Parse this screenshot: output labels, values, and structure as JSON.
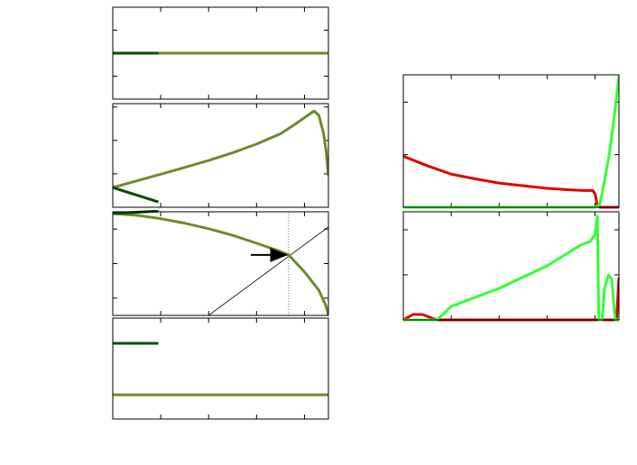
{
  "chart_data": [
    {
      "type": "line",
      "xlim": [
        0,
        4.5
      ],
      "ylim": [
        -2,
        2
      ],
      "xticks": [
        1,
        2,
        3,
        4
      ],
      "yticks": [
        -1,
        0,
        1
      ],
      "series": [
        {
          "color": "#6e8b2a",
          "x": [
            0,
            4.5
          ],
          "values": [
            0,
            0
          ]
        },
        {
          "color": "#004d00",
          "x": [
            0,
            0.95
          ],
          "values": [
            0,
            0
          ]
        }
      ]
    },
    {
      "type": "line",
      "xlim": [
        0,
        4.5
      ],
      "ylim": [
        0,
        3.1
      ],
      "xticks": [
        1,
        2,
        3,
        4
      ],
      "yticks": [
        1,
        2,
        3
      ],
      "series": [
        {
          "color": "#6e8b2a",
          "x": [
            0,
            0.5,
            1,
            1.5,
            2,
            2.5,
            3,
            3.5,
            3.8,
            4.0,
            4.2,
            4.3,
            4.4,
            4.45,
            4.5
          ],
          "values": [
            0.59,
            0.79,
            0.99,
            1.19,
            1.4,
            1.63,
            1.89,
            2.2,
            2.48,
            2.68,
            2.88,
            2.75,
            2.2,
            1.7,
            0.94
          ]
        },
        {
          "color": "#004d00",
          "x": [
            0,
            0.95
          ],
          "values": [
            0.59,
            0.16
          ]
        }
      ]
    },
    {
      "type": "line",
      "xlim": [
        0,
        4.5
      ],
      "ylim": [
        -0.5,
        2.5
      ],
      "xticks": [
        1,
        2,
        3,
        4
      ],
      "yticks": [
        0,
        1,
        2
      ],
      "vlines": [
        3.67
      ],
      "arrow": {
        "x": [
          2.88,
          3.62
        ],
        "y": [
          1.25,
          1.25
        ]
      },
      "series": [
        {
          "color": "#000000",
          "linewidth": 0.8,
          "x": [
            2.0,
            4.5
          ],
          "values": [
            -0.5,
            2.06
          ]
        },
        {
          "color": "#6e8b2a",
          "x": [
            0,
            0.5,
            1,
            1.5,
            2,
            2.5,
            3,
            3.5,
            3.67,
            4,
            4.3,
            4.45,
            4.5
          ],
          "values": [
            2.45,
            2.4,
            2.3,
            2.17,
            2.01,
            1.82,
            1.59,
            1.35,
            1.25,
            0.76,
            0.23,
            -0.23,
            -0.5
          ]
        },
        {
          "color": "#004d00",
          "x": [
            0,
            0.95
          ],
          "values": [
            2.45,
            2.52
          ]
        }
      ]
    },
    {
      "type": "line",
      "xlim": [
        0,
        4.5
      ],
      "ylim": [
        0,
        1
      ],
      "xticks": [
        1,
        2,
        3,
        4
      ],
      "yticks": [],
      "series": [
        {
          "color": "#004d00",
          "x": [
            0,
            0.95
          ],
          "values": [
            0.75,
            0.75
          ]
        },
        {
          "color": "#6e8b2a",
          "x": [
            0,
            4.5
          ],
          "values": [
            0.24,
            0.24
          ]
        }
      ]
    },
    {
      "type": "line",
      "xlim": [
        0,
        4.5
      ],
      "ylim": [
        0,
        2.52
      ],
      "xticks": [
        1,
        2,
        3,
        4
      ],
      "yticks": [
        1,
        2
      ],
      "series": [
        {
          "color": "#e00000",
          "x": [
            0,
            0.5,
            1,
            1.5,
            2,
            2.5,
            3,
            3.5,
            3.8,
            3.95,
            4.0,
            4.05,
            4.1,
            4.5
          ],
          "values": [
            0.97,
            0.79,
            0.63,
            0.54,
            0.46,
            0.41,
            0.36,
            0.33,
            0.32,
            0.32,
            0.26,
            0.03,
            0,
            0
          ]
        },
        {
          "color": "#33ff33",
          "x": [
            0,
            4.0,
            4.1,
            4.2,
            4.3,
            4.4,
            4.5
          ],
          "values": [
            0,
            0,
            0.05,
            0.51,
            1.02,
            1.7,
            2.5
          ]
        }
      ]
    },
    {
      "type": "line",
      "xlim": [
        0,
        4.5
      ],
      "ylim": [
        0,
        2.4
      ],
      "xticks": [
        1,
        2,
        3,
        4
      ],
      "yticks": [
        1,
        2
      ],
      "series": [
        {
          "color": "#e00000",
          "x": [
            0,
            0.2,
            0.4,
            0.7,
            4.45,
            4.5
          ],
          "values": [
            0,
            0.12,
            0.12,
            0,
            0,
            0.94
          ]
        },
        {
          "color": "#33ff33",
          "x": [
            0,
            0.7,
            1,
            2,
            3,
            3.7,
            3.9,
            4.0,
            4.05,
            4.08,
            4.15,
            4.2,
            4.28,
            4.35,
            4.42,
            4.5
          ],
          "values": [
            0,
            0,
            0.3,
            0.7,
            1.2,
            1.66,
            1.74,
            1.9,
            2.3,
            0,
            0,
            0.7,
            1.0,
            0.9,
            0,
            0
          ]
        }
      ]
    }
  ]
}
